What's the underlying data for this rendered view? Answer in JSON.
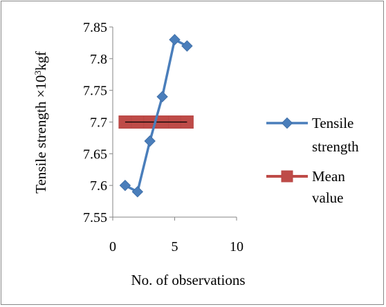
{
  "chart_data": {
    "type": "line",
    "title": "",
    "xlabel": "No. of observations",
    "ylabel_main": "Tensile strength ×10",
    "ylabel_sup": "3",
    "ylabel_tail": "kgf",
    "xlim": [
      0,
      10
    ],
    "ylim": [
      7.55,
      7.85
    ],
    "x_ticks": [
      0,
      5,
      10
    ],
    "x_tick_labels": [
      "0",
      "5",
      "10"
    ],
    "y_ticks": [
      7.55,
      7.6,
      7.65,
      7.7,
      7.75,
      7.8,
      7.85
    ],
    "y_tick_labels": [
      "7.55",
      "7.6",
      "7.65",
      "7.7",
      "7.75",
      "7.8",
      "7.85"
    ],
    "grid": false,
    "legend_position": "right",
    "series": [
      {
        "name_lines": [
          "Tensile",
          "strength"
        ],
        "color": "#4a7ebb",
        "marker": "diamond",
        "x": [
          1,
          2,
          3,
          4,
          5,
          6
        ],
        "y": [
          7.6,
          7.59,
          7.67,
          7.74,
          7.83,
          7.82
        ]
      },
      {
        "name_lines": [
          "Mean",
          "value"
        ],
        "color": "#be4b48",
        "marker": "square",
        "x": [
          1,
          2,
          3,
          4,
          5,
          6
        ],
        "y": [
          7.7,
          7.7,
          7.7,
          7.7,
          7.7,
          7.7
        ]
      }
    ]
  }
}
